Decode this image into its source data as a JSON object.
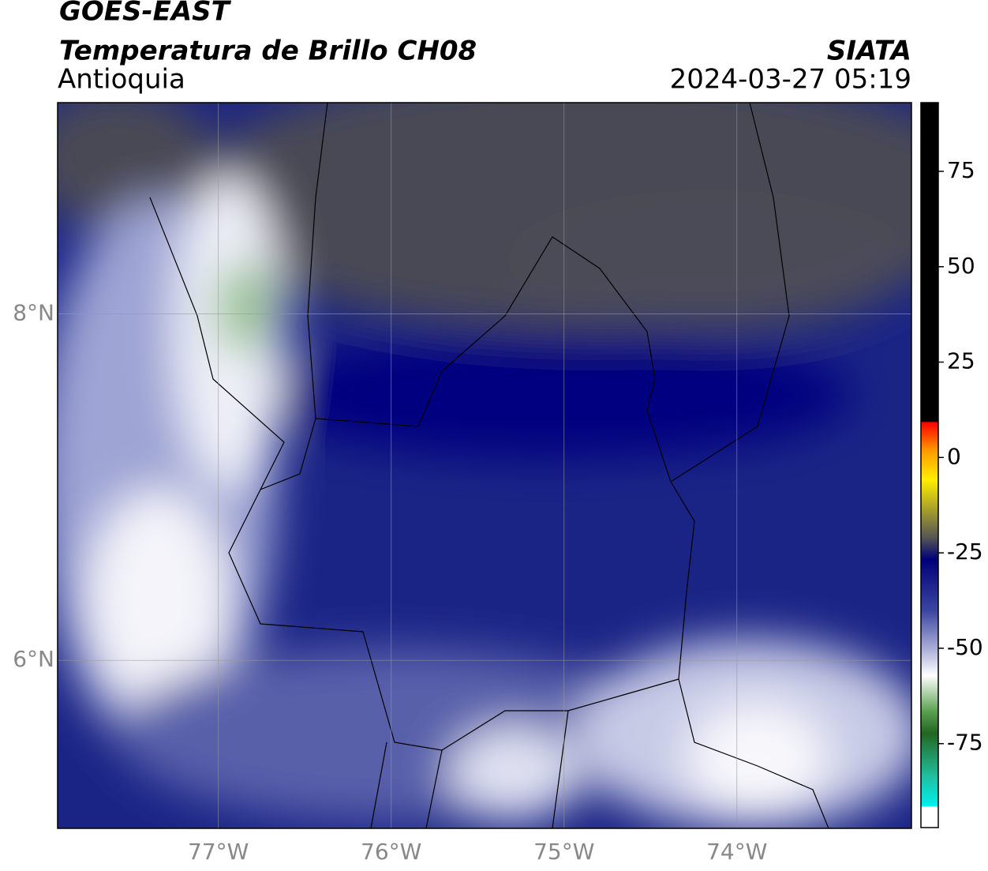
{
  "header": {
    "title": "GOES-EAST",
    "subtitle": "Temperatura de Brillo CH08",
    "region": "Antioquia",
    "source": "SIATA",
    "datetime": "2024-03-27 05:19"
  },
  "map": {
    "xlim": [
      -77.93,
      -72.99
    ],
    "ylim": [
      5.03,
      9.22
    ],
    "xticks": [
      {
        "value": -77,
        "label": "77°W"
      },
      {
        "value": -76,
        "label": "76°W"
      },
      {
        "value": -75,
        "label": "75°W"
      },
      {
        "value": -74,
        "label": "74°W"
      }
    ],
    "yticks": [
      {
        "value": 8,
        "label": "8°N"
      },
      {
        "value": 6,
        "label": "6°N"
      }
    ]
  },
  "colorbar": {
    "lim": [
      -97,
      93
    ],
    "ticks": [
      75,
      50,
      25,
      0,
      -25,
      -50,
      -75
    ]
  }
}
